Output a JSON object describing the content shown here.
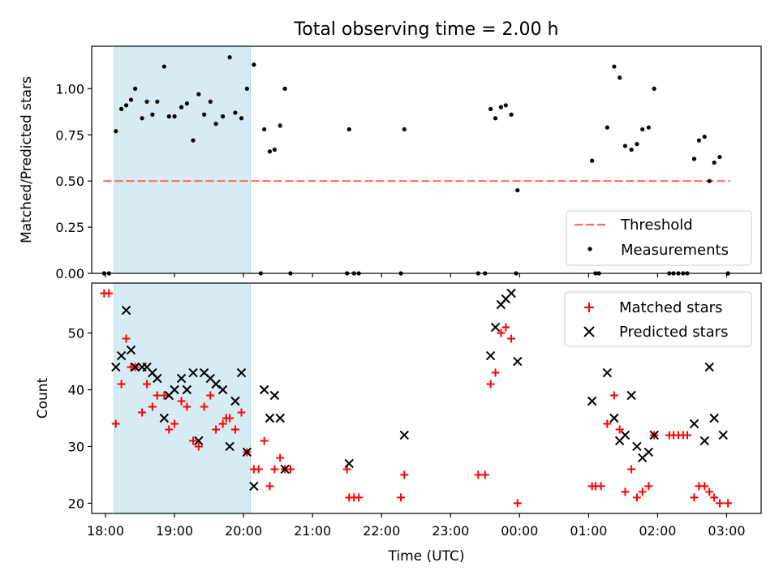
{
  "figure_title": "Total observing time = 2.00 h",
  "colors": {
    "highlight": "#add8e6",
    "threshold": "#ff6b6b",
    "matched": "#ff0000",
    "predicted": "#000000",
    "measurement": "#000000"
  },
  "chart_data": [
    {
      "type": "scatter",
      "xlabel": "",
      "ylabel": "Matched/Predicted stars",
      "xlim": [
        17.8,
        27.5
      ],
      "ylim": [
        0,
        1.23
      ],
      "yticks": [
        "0.00",
        "0.25",
        "0.50",
        "0.75",
        "1.00"
      ],
      "ytick_values": [
        0,
        0.25,
        0.5,
        0.75,
        1.0
      ],
      "highlight_span": [
        18.13,
        20.1
      ],
      "threshold": {
        "name": "Threshold",
        "y": 0.5,
        "x": [
          17.97,
          27.05
        ],
        "style": "dashed"
      },
      "legend_position": "lower right",
      "legend": [
        "Threshold",
        "Measurements"
      ],
      "series": [
        {
          "name": "Measurements",
          "points": [
            [
              17.98,
              0
            ],
            [
              18.05,
              0
            ],
            [
              18.15,
              0.77
            ],
            [
              18.23,
              0.89
            ],
            [
              18.3,
              0.91
            ],
            [
              18.37,
              0.94
            ],
            [
              18.43,
              1.0
            ],
            [
              18.53,
              0.84
            ],
            [
              18.6,
              0.93
            ],
            [
              18.68,
              0.86
            ],
            [
              18.75,
              0.93
            ],
            [
              18.85,
              1.12
            ],
            [
              18.92,
              0.85
            ],
            [
              19.0,
              0.85
            ],
            [
              19.1,
              0.9
            ],
            [
              19.18,
              0.92
            ],
            [
              19.27,
              0.72
            ],
            [
              19.35,
              0.97
            ],
            [
              19.43,
              0.86
            ],
            [
              19.52,
              0.93
            ],
            [
              19.6,
              0.81
            ],
            [
              19.7,
              0.85
            ],
            [
              19.8,
              1.17
            ],
            [
              19.88,
              0.87
            ],
            [
              19.97,
              0.84
            ],
            [
              20.05,
              1.0
            ],
            [
              20.15,
              1.13
            ],
            [
              20.25,
              0
            ],
            [
              20.3,
              0.78
            ],
            [
              20.38,
              0.66
            ],
            [
              20.45,
              0.67
            ],
            [
              20.53,
              0.8
            ],
            [
              20.6,
              1.0
            ],
            [
              20.68,
              0
            ],
            [
              21.5,
              0
            ],
            [
              21.53,
              0.78
            ],
            [
              21.6,
              0
            ],
            [
              21.67,
              0
            ],
            [
              22.28,
              0
            ],
            [
              22.33,
              0.78
            ],
            [
              23.4,
              0
            ],
            [
              23.5,
              0
            ],
            [
              23.58,
              0.89
            ],
            [
              23.65,
              0.84
            ],
            [
              23.73,
              0.9
            ],
            [
              23.8,
              0.91
            ],
            [
              23.88,
              0.86
            ],
            [
              23.95,
              0
            ],
            [
              23.97,
              0.45
            ],
            [
              25.05,
              0.61
            ],
            [
              25.1,
              0
            ],
            [
              25.15,
              0
            ],
            [
              25.27,
              0.79
            ],
            [
              25.37,
              1.12
            ],
            [
              25.45,
              1.06
            ],
            [
              25.53,
              0.69
            ],
            [
              25.62,
              0.67
            ],
            [
              25.7,
              0.7
            ],
            [
              25.78,
              0.78
            ],
            [
              25.87,
              0.79
            ],
            [
              25.95,
              1.0
            ],
            [
              26.17,
              0
            ],
            [
              26.23,
              0
            ],
            [
              26.3,
              0
            ],
            [
              26.37,
              0
            ],
            [
              26.43,
              0
            ],
            [
              26.53,
              0.62
            ],
            [
              26.6,
              0.72
            ],
            [
              26.68,
              0.74
            ],
            [
              26.75,
              0.5
            ],
            [
              26.82,
              0.6
            ],
            [
              26.9,
              0.63
            ],
            [
              27.02,
              0
            ]
          ]
        }
      ]
    },
    {
      "type": "scatter",
      "xlabel": "Time (UTC)",
      "ylabel": "Count",
      "xlim": [
        17.8,
        27.5
      ],
      "ylim": [
        18.2,
        58.8
      ],
      "xticks": [
        "18:00",
        "19:00",
        "20:00",
        "21:00",
        "22:00",
        "23:00",
        "00:00",
        "01:00",
        "02:00",
        "03:00"
      ],
      "xtick_values": [
        18,
        19,
        20,
        21,
        22,
        23,
        24,
        25,
        26,
        27
      ],
      "yticks": [
        "20",
        "30",
        "40",
        "50"
      ],
      "ytick_values": [
        20,
        30,
        40,
        50
      ],
      "highlight_span": [
        18.13,
        20.1
      ],
      "legend_position": "upper right",
      "legend": [
        "Matched stars",
        "Predicted stars"
      ],
      "series": [
        {
          "name": "Matched stars",
          "points": [
            [
              17.98,
              57
            ],
            [
              18.05,
              57
            ],
            [
              18.15,
              34
            ],
            [
              18.23,
              41
            ],
            [
              18.3,
              49
            ],
            [
              18.37,
              44
            ],
            [
              18.43,
              44
            ],
            [
              18.53,
              36
            ],
            [
              18.6,
              41
            ],
            [
              18.68,
              37
            ],
            [
              18.75,
              39
            ],
            [
              18.85,
              39
            ],
            [
              18.92,
              33
            ],
            [
              19.0,
              34
            ],
            [
              19.1,
              38
            ],
            [
              19.18,
              37
            ],
            [
              19.27,
              31
            ],
            [
              19.35,
              30
            ],
            [
              19.43,
              37
            ],
            [
              19.52,
              39
            ],
            [
              19.6,
              33
            ],
            [
              19.7,
              34
            ],
            [
              19.75,
              35
            ],
            [
              19.8,
              35
            ],
            [
              19.88,
              33
            ],
            [
              19.97,
              36
            ],
            [
              20.05,
              29
            ],
            [
              20.15,
              26
            ],
            [
              20.22,
              26
            ],
            [
              20.3,
              31
            ],
            [
              20.38,
              23
            ],
            [
              20.45,
              26
            ],
            [
              20.53,
              28
            ],
            [
              20.6,
              26
            ],
            [
              20.68,
              26
            ],
            [
              21.5,
              26
            ],
            [
              21.53,
              21
            ],
            [
              21.6,
              21
            ],
            [
              21.67,
              21
            ],
            [
              22.28,
              21
            ],
            [
              22.33,
              25
            ],
            [
              23.4,
              25
            ],
            [
              23.5,
              25
            ],
            [
              23.58,
              41
            ],
            [
              23.65,
              43
            ],
            [
              23.73,
              50
            ],
            [
              23.8,
              51
            ],
            [
              23.88,
              49
            ],
            [
              23.97,
              20
            ],
            [
              25.05,
              23
            ],
            [
              25.1,
              23
            ],
            [
              25.18,
              23
            ],
            [
              25.27,
              34
            ],
            [
              25.37,
              39
            ],
            [
              25.45,
              33
            ],
            [
              25.53,
              22
            ],
            [
              25.62,
              26
            ],
            [
              25.7,
              21
            ],
            [
              25.78,
              22
            ],
            [
              25.87,
              23
            ],
            [
              25.95,
              32
            ],
            [
              26.17,
              32
            ],
            [
              26.23,
              32
            ],
            [
              26.3,
              32
            ],
            [
              26.37,
              32
            ],
            [
              26.43,
              32
            ],
            [
              26.53,
              21
            ],
            [
              26.6,
              23
            ],
            [
              26.68,
              23
            ],
            [
              26.75,
              22
            ],
            [
              26.82,
              21
            ],
            [
              26.9,
              20
            ],
            [
              27.02,
              20
            ]
          ]
        },
        {
          "name": "Predicted stars",
          "points": [
            [
              18.15,
              44
            ],
            [
              18.23,
              46
            ],
            [
              18.3,
              54
            ],
            [
              18.37,
              47
            ],
            [
              18.43,
              44
            ],
            [
              18.53,
              44
            ],
            [
              18.6,
              44
            ],
            [
              18.68,
              43
            ],
            [
              18.75,
              42
            ],
            [
              18.85,
              35
            ],
            [
              18.92,
              39
            ],
            [
              19.0,
              40
            ],
            [
              19.1,
              42
            ],
            [
              19.18,
              40
            ],
            [
              19.27,
              43
            ],
            [
              19.35,
              31
            ],
            [
              19.43,
              43
            ],
            [
              19.52,
              42
            ],
            [
              19.6,
              41
            ],
            [
              19.7,
              40
            ],
            [
              19.8,
              30
            ],
            [
              19.88,
              38
            ],
            [
              19.97,
              43
            ],
            [
              20.05,
              29
            ],
            [
              20.15,
              23
            ],
            [
              20.3,
              40
            ],
            [
              20.38,
              35
            ],
            [
              20.45,
              39
            ],
            [
              20.53,
              35
            ],
            [
              20.6,
              26
            ],
            [
              21.53,
              27
            ],
            [
              22.33,
              32
            ],
            [
              23.58,
              46
            ],
            [
              23.65,
              51
            ],
            [
              23.73,
              55
            ],
            [
              23.8,
              56
            ],
            [
              23.88,
              57
            ],
            [
              23.97,
              45
            ],
            [
              25.05,
              38
            ],
            [
              25.27,
              43
            ],
            [
              25.37,
              35
            ],
            [
              25.45,
              31
            ],
            [
              25.53,
              32
            ],
            [
              25.62,
              39
            ],
            [
              25.7,
              30
            ],
            [
              25.78,
              28
            ],
            [
              25.87,
              29
            ],
            [
              25.95,
              32
            ],
            [
              26.53,
              34
            ],
            [
              26.68,
              31
            ],
            [
              26.75,
              44
            ],
            [
              26.82,
              35
            ],
            [
              26.95,
              32
            ]
          ]
        }
      ]
    }
  ]
}
